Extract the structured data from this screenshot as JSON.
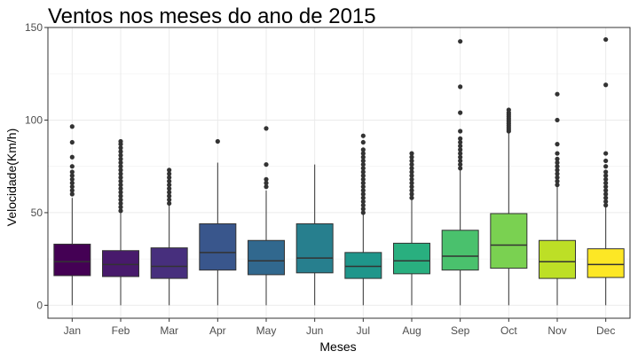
{
  "chart_data": {
    "type": "boxplot",
    "title": "Ventos nos meses do ano de 2015",
    "xlabel": "Meses",
    "ylabel": "Velocidade(Km/h)",
    "ylim": [
      -7,
      150
    ],
    "yticks": [
      0,
      50,
      100,
      150
    ],
    "grid": true,
    "legend": "none",
    "categories": [
      "Jan",
      "Feb",
      "Mar",
      "Apr",
      "May",
      "Jun",
      "Jul",
      "Aug",
      "Sep",
      "Oct",
      "Nov",
      "Dec"
    ],
    "colors": [
      "#440154",
      "#481a6c",
      "#472f7d",
      "#39568c",
      "#31688e",
      "#277f8e",
      "#1f968b",
      "#29af7f",
      "#4ac16d",
      "#7ad151",
      "#bddf26",
      "#fde725"
    ],
    "boxes": [
      {
        "min": 0,
        "q1": 16,
        "median": 23.5,
        "q3": 33,
        "max": 58,
        "outliers": [
          60,
          62,
          64,
          66,
          68,
          70,
          72,
          75,
          80,
          88,
          96.5
        ]
      },
      {
        "min": 0,
        "q1": 15.5,
        "median": 22,
        "q3": 29.5,
        "max": 50,
        "outliers": [
          51,
          53,
          55,
          57,
          59,
          61,
          63,
          65,
          67,
          69,
          71,
          73,
          75,
          77,
          79,
          81,
          83,
          85,
          87,
          88.5
        ]
      },
      {
        "min": 0,
        "q1": 14.5,
        "median": 21,
        "q3": 31,
        "max": 54,
        "outliers": [
          55,
          57,
          59,
          61,
          63,
          65,
          67,
          69,
          71,
          73
        ]
      },
      {
        "min": 0,
        "q1": 19,
        "median": 28.5,
        "q3": 44,
        "max": 77,
        "outliers": [
          88.5
        ]
      },
      {
        "min": 0,
        "q1": 16.5,
        "median": 24,
        "q3": 35,
        "max": 62,
        "outliers": [
          64,
          66,
          68,
          76,
          95.5
        ]
      },
      {
        "min": 0,
        "q1": 17.5,
        "median": 25.5,
        "q3": 44,
        "max": 76,
        "outliers": []
      },
      {
        "min": 0,
        "q1": 14.5,
        "median": 21,
        "q3": 28.5,
        "max": 49,
        "outliers": [
          50,
          52,
          54,
          56,
          58,
          60,
          62,
          64,
          66,
          68,
          70,
          72,
          74,
          76,
          78,
          80,
          82,
          84,
          88,
          91.5
        ]
      },
      {
        "min": 0,
        "q1": 17,
        "median": 24,
        "q3": 33.5,
        "max": 57,
        "outliers": [
          58,
          60,
          62,
          64,
          66,
          68,
          70,
          72,
          74,
          76,
          78,
          80,
          82
        ]
      },
      {
        "min": 0,
        "q1": 19,
        "median": 26.5,
        "q3": 40.5,
        "max": 73,
        "outliers": [
          74,
          76,
          78,
          80,
          82,
          84,
          86,
          88,
          90,
          94,
          104,
          118,
          142.5
        ]
      },
      {
        "min": 0,
        "q1": 20,
        "median": 32.5,
        "q3": 49.5,
        "max": 93,
        "outliers": [
          94,
          95,
          96,
          97,
          98,
          99,
          100,
          101,
          102,
          103,
          104,
          105.5
        ]
      },
      {
        "min": 0,
        "q1": 14.5,
        "median": 23.5,
        "q3": 35,
        "max": 64,
        "outliers": [
          65,
          67,
          69,
          71,
          73,
          75,
          77,
          79,
          82,
          87,
          100,
          114
        ]
      },
      {
        "min": 0,
        "q1": 15,
        "median": 22,
        "q3": 30.5,
        "max": 53,
        "outliers": [
          54,
          56,
          58,
          60,
          62,
          64,
          66,
          68,
          70,
          72,
          75,
          78,
          82,
          119,
          143.5
        ]
      }
    ]
  }
}
